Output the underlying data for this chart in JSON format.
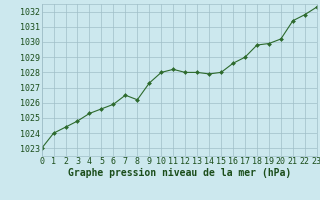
{
  "x_vals": [
    0,
    1,
    2,
    3,
    4,
    5,
    6,
    7,
    8,
    9,
    10,
    11,
    12,
    13,
    14,
    15,
    16,
    17,
    18,
    19,
    20,
    21,
    22,
    23
  ],
  "y_vals": [
    1023.0,
    1024.0,
    1024.4,
    1024.8,
    1025.3,
    1025.6,
    1025.9,
    1026.5,
    1026.2,
    1027.3,
    1028.0,
    1028.2,
    1028.0,
    1028.0,
    1027.9,
    1028.0,
    1028.6,
    1029.0,
    1029.8,
    1029.9,
    1030.2,
    1031.4,
    1031.8,
    1032.3
  ],
  "xlabel": "Graphe pression niveau de la mer (hPa)",
  "xlim": [
    0,
    23
  ],
  "ylim": [
    1022.5,
    1032.5
  ],
  "yticks": [
    1023,
    1024,
    1025,
    1026,
    1027,
    1028,
    1029,
    1030,
    1031,
    1032
  ],
  "xticks": [
    0,
    1,
    2,
    3,
    4,
    5,
    6,
    7,
    8,
    9,
    10,
    11,
    12,
    13,
    14,
    15,
    16,
    17,
    18,
    19,
    20,
    21,
    22,
    23
  ],
  "line_color": "#2d6a2d",
  "marker_color": "#2d6a2d",
  "bg_color": "#cce8ee",
  "grid_color": "#a0bfc8",
  "xlabel_color": "#1a4d1a",
  "tick_color": "#1a4d1a",
  "xlabel_fontsize": 7.0,
  "tick_fontsize": 6.0
}
